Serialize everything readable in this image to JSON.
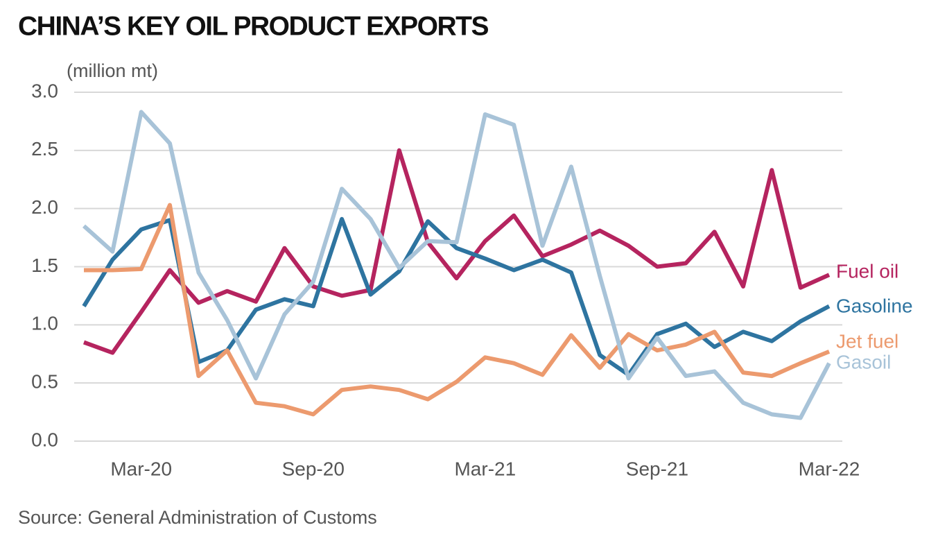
{
  "chart_data": {
    "type": "line",
    "title": "CHINA’S KEY OIL PRODUCT EXPORTS",
    "y_label": "(million mt)",
    "source": "Source: General Administration of Customs",
    "categories": [
      null,
      null,
      "Mar-20",
      null,
      null,
      null,
      null,
      null,
      "Sep-20",
      null,
      null,
      null,
      null,
      null,
      "Mar-21",
      null,
      null,
      null,
      null,
      null,
      "Sep-21",
      null,
      null,
      null,
      null,
      null,
      "Mar-22"
    ],
    "ylim": [
      0,
      3
    ],
    "yticks": [
      {
        "value": 0,
        "label": "0.0"
      },
      0.5,
      {
        "value": 1,
        "label": "1.0"
      },
      1.5,
      {
        "value": 2,
        "label": "2.0"
      },
      2.5,
      {
        "value": 3,
        "label": "3.0"
      }
    ],
    "grid": true,
    "series": [
      {
        "name": "Fuel oil",
        "color": "#b5245f",
        "values": [
          0.85,
          0.76,
          1.11,
          1.47,
          1.19,
          1.29,
          1.2,
          1.66,
          1.33,
          1.25,
          1.3,
          2.5,
          1.71,
          1.4,
          1.72,
          1.94,
          1.59,
          1.69,
          1.81,
          1.68,
          1.5,
          1.53,
          1.8,
          1.33,
          2.33,
          1.32,
          1.43
        ]
      },
      {
        "name": "Gasoline",
        "color": "#2e74a0",
        "values": [
          1.16,
          1.56,
          1.82,
          1.9,
          0.68,
          0.78,
          1.13,
          1.22,
          1.16,
          1.91,
          1.26,
          1.46,
          1.89,
          1.66,
          1.57,
          1.47,
          1.56,
          1.45,
          0.74,
          0.57,
          0.92,
          1.01,
          0.81,
          0.94,
          0.86,
          1.03,
          1.16
        ]
      },
      {
        "name": "Jet fuel",
        "color": "#ec9a6e",
        "values": [
          1.47,
          1.47,
          1.48,
          2.03,
          0.56,
          0.78,
          0.33,
          0.3,
          0.23,
          0.44,
          0.47,
          0.44,
          0.36,
          0.51,
          0.72,
          0.67,
          0.57,
          0.91,
          0.63,
          0.92,
          0.78,
          0.83,
          0.94,
          0.59,
          0.56,
          0.67,
          0.77
        ]
      },
      {
        "name": "Gasoil",
        "color": "#a8c3d8",
        "values": [
          1.85,
          1.63,
          2.83,
          2.56,
          1.45,
          1.04,
          0.54,
          1.09,
          1.37,
          2.17,
          1.91,
          1.49,
          1.72,
          1.71,
          2.81,
          2.72,
          1.68,
          2.36,
          1.42,
          0.54,
          0.89,
          0.56,
          0.6,
          0.33,
          0.23,
          0.2,
          0.67
        ]
      }
    ]
  }
}
